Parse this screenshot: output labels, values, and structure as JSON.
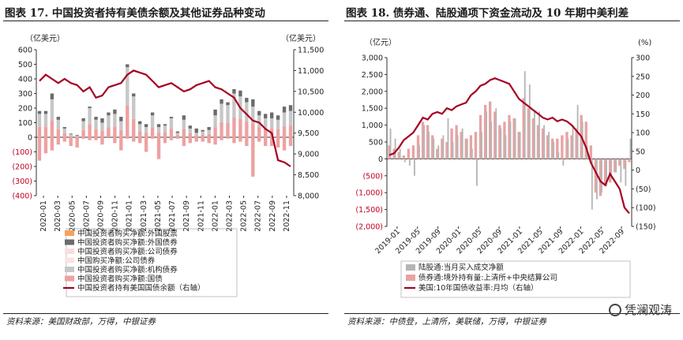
{
  "left": {
    "title": "图表 17. 中国投资者持有美债余额及其他证券品种变动",
    "source": "资料来源：美国财政部，万得，中银证券",
    "chart_data": {
      "type": "bar",
      "unit_left": "（亿美元）",
      "unit_right": "（亿美元）",
      "ylim_left": [
        -400,
        600
      ],
      "yticks_left": [
        "600",
        "500",
        "400",
        "300",
        "200",
        "100",
        "0",
        "(100)",
        "(200)",
        "(300)",
        "(400)"
      ],
      "ylim_right": [
        8000,
        11500
      ],
      "yticks_right": [
        "11,500",
        "11,000",
        "10,500",
        "10,000",
        "9,500",
        "9,000",
        "8,500",
        "8,000"
      ],
      "x_ticks": [
        "2020-01",
        "2020-03",
        "2020-05",
        "2020-07",
        "2020-09",
        "2020-11",
        "2021-01",
        "2021-03",
        "2021-05",
        "2021-07",
        "2021-09",
        "2021-11",
        "2022-01",
        "2022-03",
        "2022-05",
        "2022-07",
        "2022-09",
        "2022-11"
      ],
      "legend": [
        {
          "label": "中国投资者购买净额:外国股票",
          "color": "#f5a35b",
          "kind": "bar"
        },
        {
          "label": "中国投资者购买净额:外国债券",
          "color": "#6b6b6b",
          "kind": "bar"
        },
        {
          "label": "中国投资者购买净额:公司债券",
          "color": "#f7dede",
          "kind": "bar"
        },
        {
          "label": "中国购买净额:公司债券",
          "color": "#fbe3e3",
          "kind": "bar"
        },
        {
          "label": "中国投资者购买净额:机构债券",
          "color": "#c7c7c7",
          "kind": "bar"
        },
        {
          "label": "中国投资者购买净额:国债",
          "color": "#eea1a1",
          "kind": "bar"
        },
        {
          "label": "中国投资者持有美国国债余额（右轴）",
          "color": "#a50021",
          "kind": "line"
        }
      ],
      "series": {
        "treasury": [
          -160,
          -110,
          -90,
          -50,
          -30,
          -60,
          -70,
          -10,
          -20,
          -20,
          -50,
          50,
          -40,
          -90,
          -10,
          -30,
          -40,
          -100,
          -10,
          -150,
          -40,
          -20,
          -10,
          -60,
          -40,
          -30,
          -30,
          -40,
          -50,
          -20,
          -10,
          -40,
          -30,
          -60,
          -270,
          -30,
          -60,
          -60,
          -70,
          -90,
          -60
        ],
        "positive_gray": [
          160,
          160,
          260,
          120,
          60,
          20,
          10,
          110,
          200,
          120,
          100,
          150,
          160,
          110,
          480,
          280,
          90,
          70,
          150,
          70,
          80,
          130,
          30,
          120,
          60,
          30,
          40,
          50,
          150,
          230,
          220,
          300,
          280,
          240,
          210,
          150,
          130,
          130,
          120,
          170,
          180
        ],
        "dark_top": [
          20,
          20,
          40,
          20,
          10,
          5,
          5,
          20,
          10,
          20,
          30,
          20,
          30,
          30,
          20,
          20,
          20,
          20,
          20,
          20,
          10,
          10,
          10,
          30,
          20,
          30,
          10,
          20,
          40,
          30,
          20,
          30,
          40,
          30,
          50,
          30,
          30,
          40,
          30,
          40,
          40
        ],
        "line_holdings": [
          10750,
          10900,
          10800,
          10700,
          10800,
          10700,
          10650,
          10500,
          10600,
          10350,
          10400,
          10600,
          10650,
          10700,
          10900,
          11000,
          10950,
          10900,
          10750,
          10600,
          10650,
          10700,
          10600,
          10500,
          10550,
          10650,
          10700,
          10750,
          10600,
          10550,
          10450,
          10350,
          10100,
          9950,
          9800,
          9750,
          9600,
          9500,
          8850,
          8800,
          8700
        ]
      }
    }
  },
  "right": {
    "title": "图表 18. 债券通、陆股通项下资金流动及 10 年期中美利差",
    "source": "资料来源：中债登，上清所，美联储，万得，中银证券",
    "watermark": "凭澜观涛",
    "chart_data": {
      "type": "bar",
      "unit_left": "（亿元）",
      "unit_right": "(%)",
      "ylim_left": [
        -2000,
        3000
      ],
      "yticks_left": [
        "3,000",
        "2,500",
        "2,000",
        "1,500",
        "1,000",
        "500",
        "0",
        "(500)",
        "(1,000)",
        "(1,500)",
        "(2,000)"
      ],
      "ylim_right": [
        -150,
        300
      ],
      "yticks_right": [
        "300",
        "250",
        "200",
        "150",
        "100",
        "50",
        "0",
        "(50)",
        "(100)",
        "(150)"
      ],
      "x_ticks": [
        "2019-01",
        "2019-05",
        "2019-09",
        "2020-01",
        "2020-05",
        "2020-09",
        "2021-01",
        "2021-05",
        "2021-09",
        "2022-01",
        "2022-05",
        "2022-09"
      ],
      "legend": [
        {
          "label": "陆股通:当月买入成交净额",
          "color": "#b5b5b5",
          "kind": "bar"
        },
        {
          "label": "债券通:境外持有量:上清所+中央结算公司",
          "color": "#e8a3a3",
          "kind": "bar"
        },
        {
          "label": "美国:10年国债收益率:月均（右轴）",
          "color": "#a50021",
          "kind": "line"
        }
      ],
      "series": {
        "stock_connect": [
          900,
          600,
          300,
          -100,
          -200,
          -500,
          400,
          1000,
          800,
          600,
          400,
          700,
          1200,
          500,
          700,
          900,
          600,
          300,
          -800,
          800,
          1400,
          1100,
          1500,
          900,
          700,
          1100,
          1200,
          800,
          2600,
          2200,
          1400,
          1400,
          1000,
          800,
          500,
          200,
          -200,
          600,
          1000,
          1600,
          1100,
          400,
          -1500,
          -1200,
          -1000,
          -800,
          -600,
          -400,
          -700,
          -800,
          600
        ],
        "bond_connect": [
          400,
          300,
          200,
          100,
          300,
          400,
          700,
          1100,
          1000,
          700,
          300,
          600,
          500,
          900,
          1000,
          800,
          600,
          700,
          800,
          1300,
          1600,
          1700,
          1400,
          1000,
          1100,
          1300,
          1200,
          800,
          1800,
          1500,
          1200,
          1000,
          900,
          700,
          600,
          600,
          700,
          800,
          700,
          900,
          1300,
          1100,
          400,
          -1000,
          -1100,
          -800,
          -700,
          -400,
          -200,
          -300,
          -100
        ],
        "line_spread": [
          40,
          45,
          60,
          80,
          90,
          100,
          120,
          140,
          135,
          150,
          155,
          150,
          165,
          160,
          170,
          175,
          180,
          200,
          210,
          225,
          230,
          240,
          245,
          240,
          235,
          230,
          210,
          190,
          180,
          170,
          160,
          150,
          140,
          135,
          140,
          130,
          135,
          130,
          120,
          105,
          90,
          60,
          20,
          -5,
          -30,
          -40,
          -10,
          -30,
          -50,
          -100,
          -115
        ]
      }
    }
  }
}
